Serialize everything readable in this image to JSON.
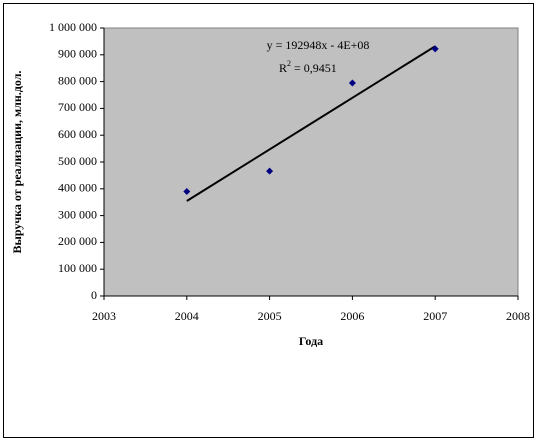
{
  "chart_data": {
    "type": "scatter",
    "x_label": "Года",
    "y_label": "Выручка от реализации, млн.дол.",
    "equation": "y = 192948x - 4E+08",
    "r2_label": "R",
    "r2_sup": "2",
    "r2_value": "= 0,9451",
    "series": [
      {
        "name": "Выручка",
        "color": "#000080",
        "x": [
          2004,
          2005,
          2006,
          2007
        ],
        "values": [
          390000,
          466000,
          795000,
          922000
        ]
      }
    ],
    "trendline": true,
    "xlim": [
      2003,
      2008
    ],
    "xticks": [
      2003,
      2004,
      2005,
      2006,
      2007,
      2008
    ],
    "ylim": [
      0,
      1000000
    ],
    "yticks": [
      0,
      {
        "value": 100000,
        "label": "100 000"
      },
      {
        "value": 200000,
        "label": "200 000"
      },
      {
        "value": 300000,
        "label": "300 000"
      },
      {
        "value": 400000,
        "label": "400 000"
      },
      {
        "value": 500000,
        "label": "500 000"
      },
      {
        "value": 600000,
        "label": "600 000"
      },
      {
        "value": 700000,
        "label": "700 000"
      },
      {
        "value": 800000,
        "label": "800 000"
      },
      {
        "value": 900000,
        "label": "900 000"
      },
      {
        "value": 1000000,
        "label": "1 000 000"
      }
    ],
    "plot_color": "#c0c0c0"
  }
}
